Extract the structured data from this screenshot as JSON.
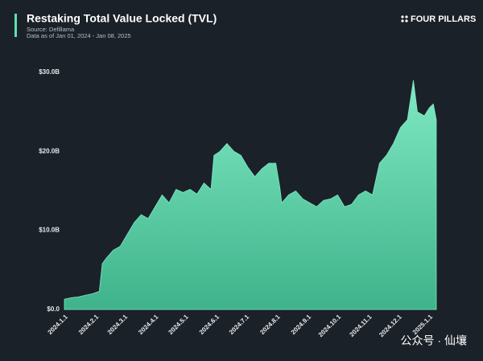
{
  "chart_data": {
    "type": "area",
    "title": "Restaking Total Value Locked (TVL)",
    "subtitle": [
      "Source: Defillama",
      "Data as of Jan 01, 2024 - Jan 08, 2025"
    ],
    "brand": "FOUR PILLARS",
    "watermark": "公众号 · 仙壤",
    "color": "#7fe9c3",
    "grid": false,
    "x": [
      "2024.1.1",
      "2024.1.8",
      "2024.1.15",
      "2024.1.22",
      "2024.1.29",
      "2024.2.5",
      "2024.2.8",
      "2024.2.12",
      "2024.2.19",
      "2024.2.26",
      "2024.3.4",
      "2024.3.11",
      "2024.3.18",
      "2024.3.25",
      "2024.4.1",
      "2024.4.8",
      "2024.4.15",
      "2024.4.22",
      "2024.4.29",
      "2024.5.6",
      "2024.5.13",
      "2024.5.20",
      "2024.5.27",
      "2024.5.30",
      "2024.6.5",
      "2024.6.12",
      "2024.6.19",
      "2024.6.26",
      "2024.7.3",
      "2024.7.10",
      "2024.7.17",
      "2024.7.24",
      "2024.7.31",
      "2024.8.4",
      "2024.8.6",
      "2024.8.13",
      "2024.8.20",
      "2024.8.27",
      "2024.9.3",
      "2024.9.10",
      "2024.9.17",
      "2024.9.24",
      "2024.10.1",
      "2024.10.8",
      "2024.10.15",
      "2024.10.22",
      "2024.10.29",
      "2024.11.5",
      "2024.11.12",
      "2024.11.19",
      "2024.11.26",
      "2024.12.3",
      "2024.12.10",
      "2024.12.16",
      "2024.12.20",
      "2024.12.27",
      "2025.1.1",
      "2025.1.5",
      "2025.1.8"
    ],
    "values": [
      1.3,
      1.5,
      1.6,
      1.8,
      2.0,
      2.3,
      5.8,
      6.5,
      7.5,
      8.0,
      9.5,
      11.0,
      12.0,
      11.5,
      13.0,
      14.5,
      13.5,
      15.2,
      14.8,
      15.2,
      14.6,
      16.0,
      15.2,
      19.5,
      20.0,
      21.0,
      20.0,
      19.5,
      18.0,
      16.8,
      17.8,
      18.5,
      18.5,
      15.5,
      13.5,
      14.5,
      15.0,
      14.0,
      13.5,
      13.0,
      13.8,
      14.0,
      14.5,
      13.0,
      13.3,
      14.5,
      15.0,
      14.5,
      18.5,
      19.5,
      21.0,
      23.0,
      24.0,
      29.0,
      25.0,
      24.5,
      25.5,
      26.0,
      24.0
    ],
    "xlim": [
      "2024.1.1",
      "2025.1.8"
    ],
    "xticks": [
      "2024.1.1",
      "2024.2.1",
      "2024.3.1",
      "2024.4.1",
      "2024.5.1",
      "2024.6.1",
      "2024.7.1",
      "2024.8.1",
      "2024.9.1",
      "2024.10.1",
      "2024.11.1",
      "2024.12.1",
      "2025.1.1"
    ],
    "ylim": [
      0,
      30.5
    ],
    "yticks": [
      {
        "value": 0,
        "label": "$0.0"
      },
      {
        "value": 10,
        "label": "$10.0B"
      },
      {
        "value": 20,
        "label": "$20.0B"
      },
      {
        "value": 30,
        "label": "$30.0B"
      }
    ]
  }
}
